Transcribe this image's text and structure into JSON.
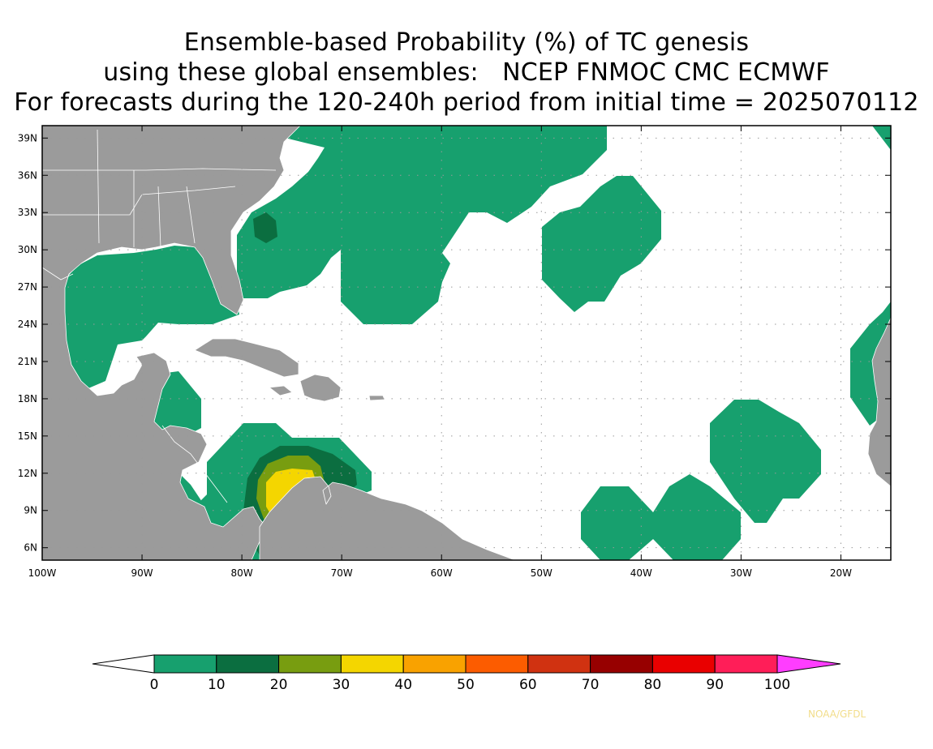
{
  "title": {
    "line1": "Ensemble-based Probability (%) of TC genesis",
    "line2": "using these global ensembles:   NCEP FNMOC CMC ECMWF",
    "line3": "For forecasts during the 120-240h period from initial time = 2025070112"
  },
  "map": {
    "lon_range": [
      -100,
      -15
    ],
    "lat_range": [
      5,
      40
    ],
    "lat_ticks": [
      {
        "value": 39,
        "label": "39N"
      },
      {
        "value": 36,
        "label": "36N"
      },
      {
        "value": 33,
        "label": "33N"
      },
      {
        "value": 30,
        "label": "30N"
      },
      {
        "value": 27,
        "label": "27N"
      },
      {
        "value": 24,
        "label": "24N"
      },
      {
        "value": 21,
        "label": "21N"
      },
      {
        "value": 18,
        "label": "18N"
      },
      {
        "value": 15,
        "label": "15N"
      },
      {
        "value": 12,
        "label": "12N"
      },
      {
        "value": 9,
        "label": "9N"
      },
      {
        "value": 6,
        "label": "6N"
      }
    ],
    "lon_ticks": [
      {
        "value": -100,
        "label": "100W"
      },
      {
        "value": -90,
        "label": "90W"
      },
      {
        "value": -80,
        "label": "80W"
      },
      {
        "value": -70,
        "label": "70W"
      },
      {
        "value": -60,
        "label": "60W"
      },
      {
        "value": -50,
        "label": "50W"
      },
      {
        "value": -40,
        "label": "40W"
      },
      {
        "value": -30,
        "label": "30W"
      },
      {
        "value": -20,
        "label": "20W"
      }
    ],
    "grid": "dotted",
    "land_color": "#9b9b9b",
    "ocean_color": "#ffffff"
  },
  "colorbar": {
    "labels": [
      "0",
      "10",
      "20",
      "30",
      "40",
      "50",
      "60",
      "70",
      "80",
      "90",
      "100"
    ],
    "colors": [
      "#17a06e",
      "#0b6e40",
      "#789d10",
      "#f4d600",
      "#f9a200",
      "#fc5c00",
      "#d03211",
      "#970000",
      "#e90000",
      "#ff1e58"
    ],
    "under_color": "#ffffff",
    "over_color": "#ff3dff"
  },
  "credit": "NOAA/GFDL"
}
